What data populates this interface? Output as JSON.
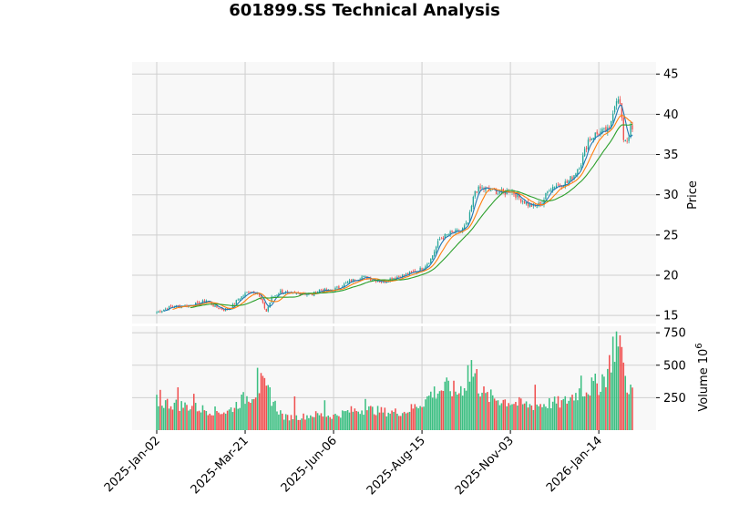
{
  "chart_data": {
    "type": "candlestick",
    "title": "601899.SS Technical Analysis",
    "price_panel": {
      "ylabel": "Price",
      "ylim": [
        14.0,
        46.5
      ],
      "yticks": [
        15,
        20,
        25,
        30,
        35,
        40,
        45
      ],
      "tick_labels": [
        "15",
        "20",
        "25",
        "30",
        "35",
        "40",
        "45"
      ]
    },
    "volume_panel": {
      "ylabel": "Volume",
      "exponent_label": "10",
      "exponent_power": "6",
      "ylim": [
        0,
        800
      ],
      "yticks": [
        250,
        500,
        750
      ],
      "tick_labels": [
        "250",
        "500",
        "750"
      ]
    },
    "x_ticks": [
      {
        "label": "2025-Jan-02",
        "index": 0
      },
      {
        "label": "2025-Mar-21",
        "index": 50
      },
      {
        "label": "2025-Jun-06",
        "index": 100
      },
      {
        "label": "2025-Aug-15",
        "index": 150
      },
      {
        "label": "2025-Nov-03",
        "index": 200
      },
      {
        "label": "2026-Jan-14",
        "index": 250
      }
    ],
    "bar_count": 270,
    "price_keypoints": [
      [
        0,
        15.4
      ],
      [
        8,
        16.1
      ],
      [
        16,
        16.2
      ],
      [
        24,
        16.5
      ],
      [
        28,
        16.9
      ],
      [
        33,
        16.1
      ],
      [
        38,
        15.7
      ],
      [
        42,
        16.0
      ],
      [
        46,
        17.0
      ],
      [
        52,
        18.0
      ],
      [
        57,
        17.9
      ],
      [
        60,
        16.4
      ],
      [
        62,
        15.5
      ],
      [
        65,
        17.2
      ],
      [
        70,
        18.0
      ],
      [
        76,
        17.6
      ],
      [
        82,
        17.8
      ],
      [
        88,
        17.6
      ],
      [
        92,
        18.2
      ],
      [
        98,
        18.0
      ],
      [
        104,
        18.6
      ],
      [
        110,
        19.3
      ],
      [
        116,
        19.8
      ],
      [
        122,
        19.5
      ],
      [
        128,
        19.2
      ],
      [
        134,
        19.7
      ],
      [
        140,
        20.0
      ],
      [
        146,
        20.5
      ],
      [
        150,
        20.8
      ],
      [
        155,
        22.0
      ],
      [
        160,
        24.5
      ],
      [
        166,
        25.2
      ],
      [
        172,
        25.5
      ],
      [
        176,
        26.5
      ],
      [
        180,
        30.5
      ],
      [
        184,
        30.8
      ],
      [
        190,
        30.5
      ],
      [
        196,
        30.2
      ],
      [
        200,
        30.6
      ],
      [
        205,
        29.6
      ],
      [
        210,
        28.8
      ],
      [
        214,
        28.5
      ],
      [
        218,
        29.0
      ],
      [
        222,
        30.8
      ],
      [
        226,
        31.2
      ],
      [
        232,
        31.5
      ],
      [
        236,
        32.5
      ],
      [
        240,
        34.0
      ],
      [
        244,
        36.8
      ],
      [
        248,
        37.5
      ],
      [
        252,
        37.8
      ],
      [
        256,
        38.0
      ],
      [
        258,
        40.5
      ],
      [
        260,
        42.0
      ],
      [
        262,
        41.2
      ],
      [
        264,
        37.0
      ],
      [
        266,
        36.8
      ],
      [
        268,
        38.2
      ],
      [
        269,
        38.0
      ]
    ],
    "volume_keypoints": [
      [
        0,
        220
      ],
      [
        10,
        200
      ],
      [
        20,
        180
      ],
      [
        30,
        150
      ],
      [
        40,
        140
      ],
      [
        48,
        230
      ],
      [
        52,
        260
      ],
      [
        56,
        300
      ],
      [
        60,
        340
      ],
      [
        64,
        270
      ],
      [
        68,
        170
      ],
      [
        72,
        100
      ],
      [
        80,
        100
      ],
      [
        90,
        120
      ],
      [
        100,
        110
      ],
      [
        110,
        150
      ],
      [
        120,
        160
      ],
      [
        130,
        140
      ],
      [
        140,
        140
      ],
      [
        146,
        180
      ],
      [
        150,
        210
      ],
      [
        155,
        280
      ],
      [
        160,
        310
      ],
      [
        165,
        330
      ],
      [
        170,
        290
      ],
      [
        174,
        350
      ],
      [
        178,
        420
      ],
      [
        182,
        340
      ],
      [
        186,
        260
      ],
      [
        190,
        250
      ],
      [
        196,
        230
      ],
      [
        200,
        220
      ],
      [
        206,
        200
      ],
      [
        212,
        190
      ],
      [
        218,
        200
      ],
      [
        224,
        210
      ],
      [
        230,
        210
      ],
      [
        236,
        270
      ],
      [
        240,
        310
      ],
      [
        244,
        320
      ],
      [
        248,
        350
      ],
      [
        252,
        360
      ],
      [
        256,
        500
      ],
      [
        258,
        640
      ],
      [
        260,
        660
      ],
      [
        262,
        560
      ],
      [
        264,
        420
      ],
      [
        266,
        360
      ],
      [
        268,
        320
      ],
      [
        269,
        280
      ]
    ],
    "volume_spikes": [
      [
        2,
        310
      ],
      [
        12,
        330
      ],
      [
        21,
        280
      ],
      [
        57,
        480
      ],
      [
        59,
        440
      ],
      [
        64,
        330
      ],
      [
        78,
        260
      ],
      [
        95,
        230
      ],
      [
        118,
        240
      ],
      [
        153,
        260
      ],
      [
        176,
        500
      ],
      [
        178,
        540
      ],
      [
        181,
        470
      ],
      [
        214,
        350
      ],
      [
        240,
        420
      ],
      [
        252,
        430
      ],
      [
        258,
        720
      ],
      [
        260,
        760
      ],
      [
        262,
        730
      ],
      [
        263,
        640
      ],
      [
        264,
        520
      ]
    ],
    "moving_averages": [
      {
        "window": 5,
        "color": "#1f77b4"
      },
      {
        "window": 10,
        "color": "#ff7f0e"
      },
      {
        "window": 20,
        "color": "#2ca02c"
      }
    ],
    "colors": {
      "up": "#26a69a",
      "down": "#ef5350",
      "up_volume": "#3cbf82",
      "down_volume": "#f05050",
      "panel_bg": "#f8f8f8",
      "grid": "#cfcfcf"
    },
    "grid": true,
    "legend": "none"
  }
}
